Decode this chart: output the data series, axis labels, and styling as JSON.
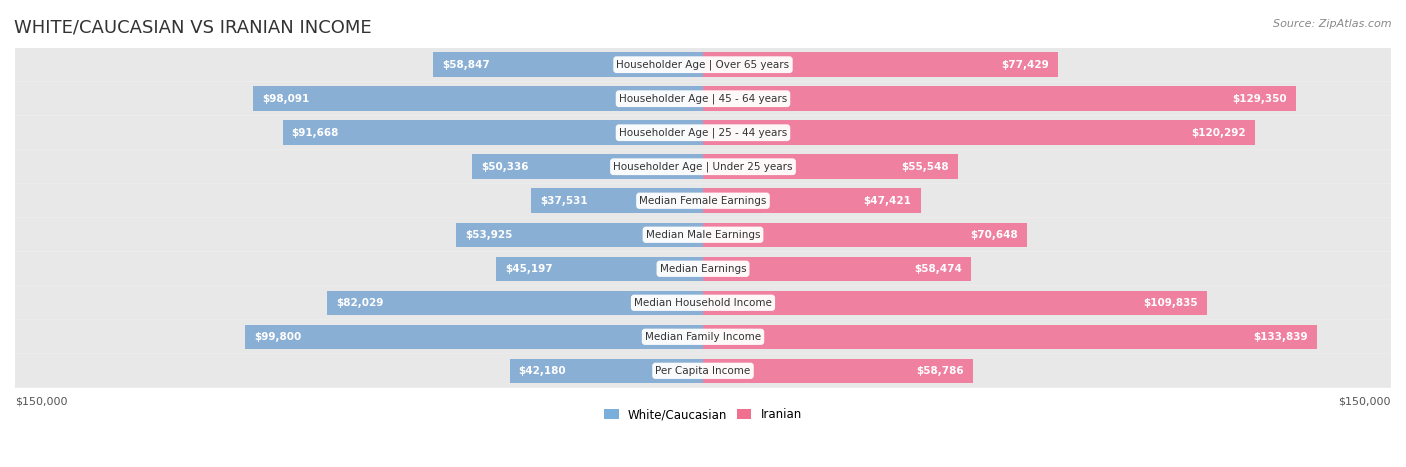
{
  "title": "WHITE/CAUCASIAN VS IRANIAN INCOME",
  "source": "Source: ZipAtlas.com",
  "categories": [
    "Per Capita Income",
    "Median Family Income",
    "Median Household Income",
    "Median Earnings",
    "Median Male Earnings",
    "Median Female Earnings",
    "Householder Age | Under 25 years",
    "Householder Age | 25 - 44 years",
    "Householder Age | 45 - 64 years",
    "Householder Age | Over 65 years"
  ],
  "white_values": [
    42180,
    99800,
    82029,
    45197,
    53925,
    37531,
    50336,
    91668,
    98091,
    58847
  ],
  "iranian_values": [
    58786,
    133839,
    109835,
    58474,
    70648,
    47421,
    55548,
    120292,
    129350,
    77429
  ],
  "white_color": "#8aafd4",
  "iranian_color": "#f080a0",
  "white_color_dark": "#5b8fc4",
  "iranian_color_dark": "#e85080",
  "white_label_color_inside": "#ffffff",
  "bar_bg_color": "#f0f0f0",
  "row_bg_color_odd": "#f7f7f7",
  "row_bg_color_even": "#eeeeee",
  "max_value": 150000,
  "center_label_bg": "#ffffff",
  "fig_bg": "#ffffff",
  "white_legend_color": "#7aaedb",
  "iranian_legend_color": "#f07090"
}
